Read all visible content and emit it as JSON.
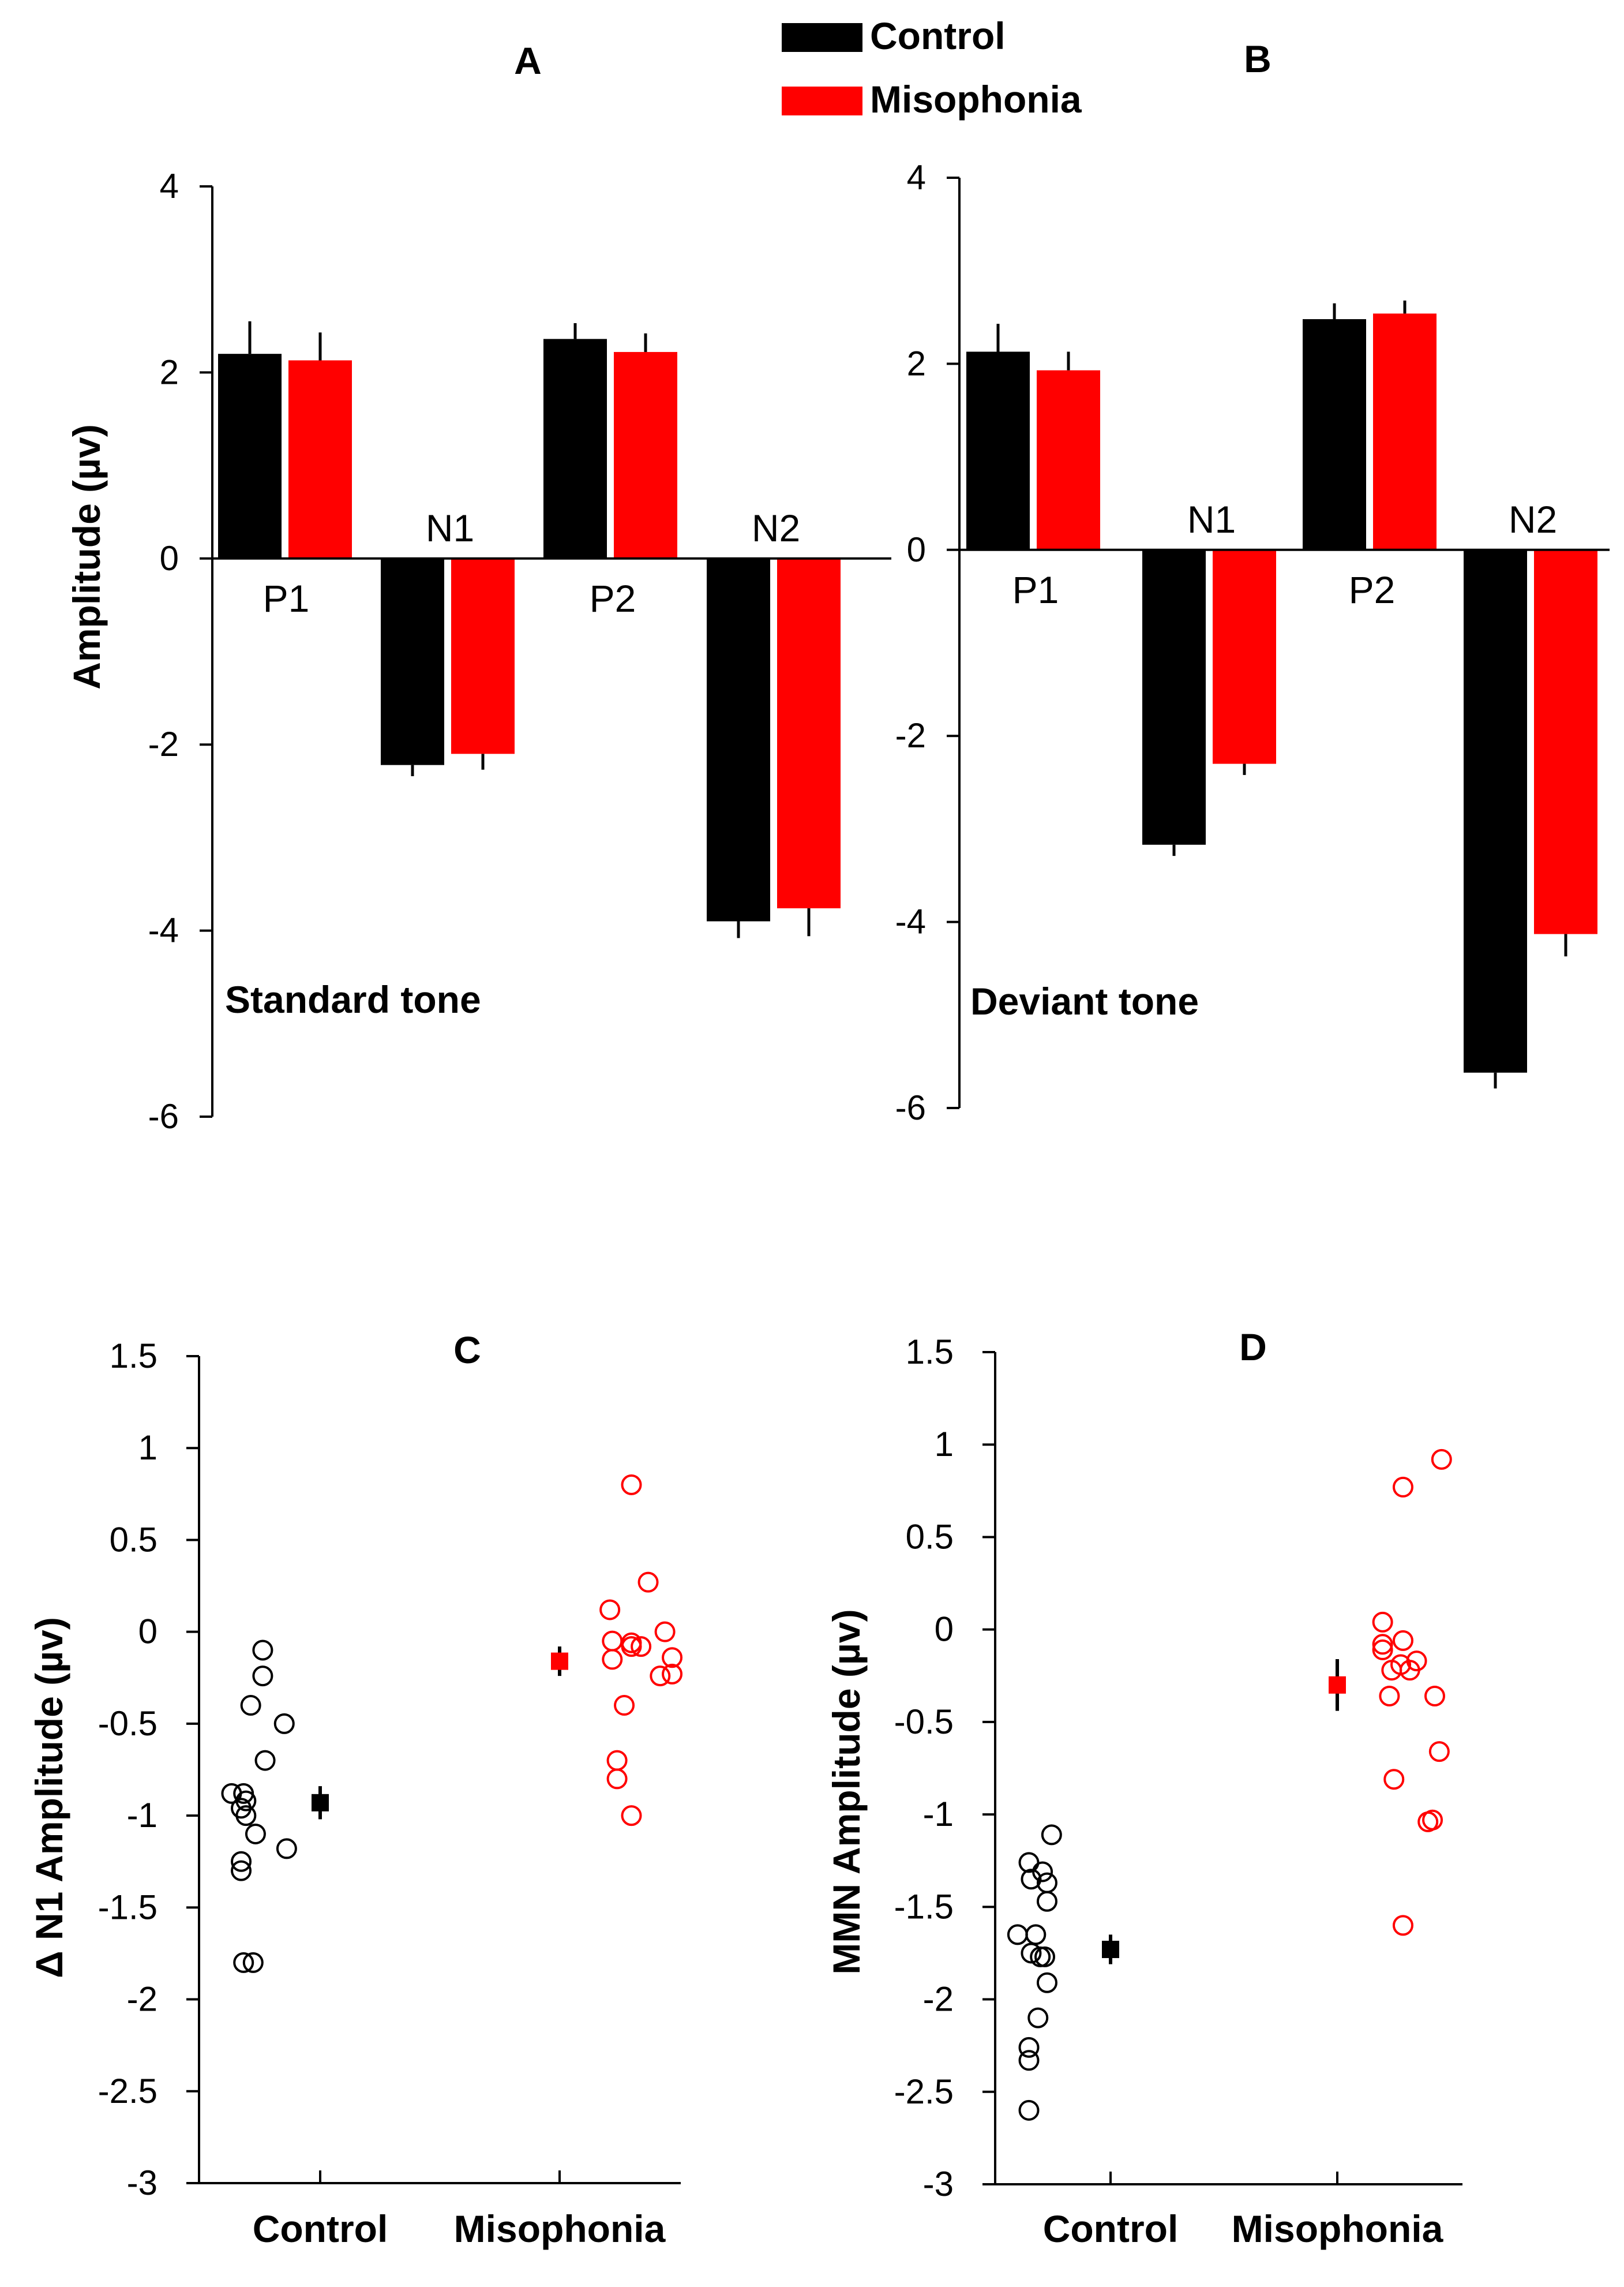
{
  "legend": {
    "placement": "top-center",
    "items": [
      {
        "label": "Control",
        "color": "#000000"
      },
      {
        "label": "Misophonia",
        "color": "#ff0000"
      }
    ]
  },
  "chart_data": [
    {
      "panel": "A",
      "type": "bar",
      "title": "",
      "annotation": "Standard tone",
      "ylabel": "Amplitude (µv)",
      "ylim": [
        -6,
        4
      ],
      "yticks": [
        "4",
        "2",
        "0",
        "-2",
        "-4",
        "-6"
      ],
      "categories": [
        "P1",
        "N1",
        "P2",
        "N2"
      ],
      "series": [
        {
          "name": "Control",
          "color": "#000000",
          "values": [
            2.2,
            -2.22,
            2.36,
            -3.9
          ],
          "errors": [
            0.35,
            0.12,
            0.17,
            0.18
          ]
        },
        {
          "name": "Misophonia",
          "color": "#ff0000",
          "values": [
            2.13,
            -2.1,
            2.22,
            -3.76
          ],
          "errors": [
            0.3,
            0.17,
            0.2,
            0.3
          ]
        }
      ]
    },
    {
      "panel": "B",
      "type": "bar",
      "title": "",
      "annotation": "Deviant tone",
      "ylabel": "",
      "ylim": [
        -6,
        4
      ],
      "yticks": [
        "4",
        "2",
        "0",
        "-2",
        "-4",
        "-6"
      ],
      "categories": [
        "P1",
        "N1",
        "P2",
        "N2"
      ],
      "series": [
        {
          "name": "Control",
          "color": "#000000",
          "values": [
            2.13,
            -3.17,
            2.48,
            -5.62
          ],
          "errors": [
            0.3,
            0.12,
            0.17,
            0.17
          ]
        },
        {
          "name": "Misophonia",
          "color": "#ff0000",
          "values": [
            1.93,
            -2.3,
            2.54,
            -4.13
          ],
          "errors": [
            0.2,
            0.12,
            0.14,
            0.24
          ]
        }
      ]
    },
    {
      "panel": "C",
      "type": "scatter",
      "title": "",
      "ylabel": "Δ N1 Amplitude (µv)",
      "xlabel": "",
      "ylim": [
        -3,
        1.5
      ],
      "yticks": [
        "1.5",
        "1",
        "0.5",
        "0",
        "-0.5",
        "-1",
        "-1.5",
        "-2",
        "-2.5",
        "-3"
      ],
      "categories": [
        "Control",
        "Misophonia"
      ],
      "series": [
        {
          "name": "Control",
          "color": "#000000",
          "points": [
            {
              "x": 0.76,
              "y": -0.1
            },
            {
              "x": 0.76,
              "y": -0.24
            },
            {
              "x": 0.85,
              "y": -0.5
            },
            {
              "x": 0.71,
              "y": -0.4
            },
            {
              "x": 0.77,
              "y": -0.7
            },
            {
              "x": 0.63,
              "y": -0.88
            },
            {
              "x": 0.68,
              "y": -0.88
            },
            {
              "x": 0.69,
              "y": -0.92
            },
            {
              "x": 0.67,
              "y": -0.96
            },
            {
              "x": 0.69,
              "y": -1.0
            },
            {
              "x": 0.73,
              "y": -1.1
            },
            {
              "x": 0.86,
              "y": -1.18
            },
            {
              "x": 0.67,
              "y": -1.25
            },
            {
              "x": 0.67,
              "y": -1.3
            },
            {
              "x": 0.68,
              "y": -1.8
            },
            {
              "x": 0.72,
              "y": -1.8
            }
          ],
          "mean": {
            "x": 1.0,
            "y": -0.93,
            "error": 0.09
          }
        },
        {
          "name": "Misophonia",
          "color": "#ff0000",
          "points": [
            {
              "x": 2.3,
              "y": 0.8
            },
            {
              "x": 2.37,
              "y": 0.27
            },
            {
              "x": 2.21,
              "y": 0.12
            },
            {
              "x": 2.22,
              "y": -0.05
            },
            {
              "x": 2.3,
              "y": -0.06
            },
            {
              "x": 2.3,
              "y": -0.08
            },
            {
              "x": 2.34,
              "y": -0.08
            },
            {
              "x": 2.44,
              "y": 0.0
            },
            {
              "x": 2.47,
              "y": -0.14
            },
            {
              "x": 2.22,
              "y": -0.15
            },
            {
              "x": 2.42,
              "y": -0.24
            },
            {
              "x": 2.47,
              "y": -0.23
            },
            {
              "x": 2.27,
              "y": -0.4
            },
            {
              "x": 2.24,
              "y": -0.7
            },
            {
              "x": 2.24,
              "y": -0.8
            },
            {
              "x": 2.3,
              "y": -1.0
            }
          ],
          "mean": {
            "x": 2.0,
            "y": -0.16,
            "error": 0.08
          }
        }
      ]
    },
    {
      "panel": "D",
      "type": "scatter",
      "title": "",
      "ylabel": "MMN Amplitude (µv)",
      "xlabel": "",
      "ylim": [
        -3,
        1.5
      ],
      "yticks": [
        "1.5",
        "1",
        "0.5",
        "0",
        "-0.5",
        "-1",
        "-1.5",
        "-2",
        "-2.5",
        "-3"
      ],
      "categories": [
        "Control",
        "Misophonia"
      ],
      "series": [
        {
          "name": "Control",
          "color": "#000000",
          "points": [
            {
              "x": 0.74,
              "y": -1.11
            },
            {
              "x": 0.64,
              "y": -1.26
            },
            {
              "x": 0.7,
              "y": -1.31
            },
            {
              "x": 0.65,
              "y": -1.35
            },
            {
              "x": 0.72,
              "y": -1.37
            },
            {
              "x": 0.72,
              "y": -1.47
            },
            {
              "x": 0.59,
              "y": -1.65
            },
            {
              "x": 0.67,
              "y": -1.65
            },
            {
              "x": 0.65,
              "y": -1.75
            },
            {
              "x": 0.69,
              "y": -1.77
            },
            {
              "x": 0.71,
              "y": -1.77
            },
            {
              "x": 0.72,
              "y": -1.91
            },
            {
              "x": 0.68,
              "y": -2.1
            },
            {
              "x": 0.64,
              "y": -2.26
            },
            {
              "x": 0.64,
              "y": -2.33
            },
            {
              "x": 0.64,
              "y": -2.6
            }
          ],
          "mean": {
            "x": 1.0,
            "y": -1.73,
            "error": 0.08
          }
        },
        {
          "name": "Misophonia",
          "color": "#ff0000",
          "points": [
            {
              "x": 2.46,
              "y": 0.92
            },
            {
              "x": 2.29,
              "y": 0.77
            },
            {
              "x": 2.2,
              "y": 0.04
            },
            {
              "x": 2.2,
              "y": -0.08
            },
            {
              "x": 2.2,
              "y": -0.11
            },
            {
              "x": 2.29,
              "y": -0.06
            },
            {
              "x": 2.28,
              "y": -0.19
            },
            {
              "x": 2.35,
              "y": -0.17
            },
            {
              "x": 2.24,
              "y": -0.22
            },
            {
              "x": 2.32,
              "y": -0.22
            },
            {
              "x": 2.23,
              "y": -0.36
            },
            {
              "x": 2.43,
              "y": -0.36
            },
            {
              "x": 2.45,
              "y": -0.66
            },
            {
              "x": 2.25,
              "y": -0.81
            },
            {
              "x": 2.42,
              "y": -1.03
            },
            {
              "x": 2.4,
              "y": -1.04
            },
            {
              "x": 2.29,
              "y": -1.6
            }
          ],
          "mean": {
            "x": 2.0,
            "y": -0.3,
            "error": 0.14
          }
        }
      ]
    }
  ]
}
